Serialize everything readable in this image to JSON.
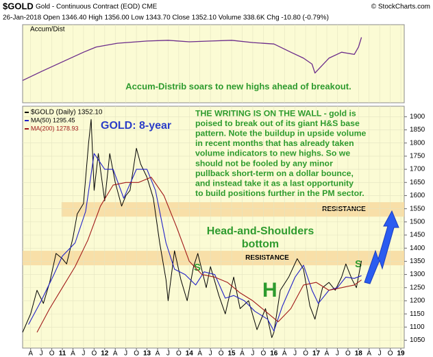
{
  "chart_data": {
    "type": "line",
    "header": {
      "symbol": "$GOLD",
      "description": "Gold - Continuous Contract (EOD) CME",
      "copyright": "© StockCharts.com",
      "quote": "26-Jan-2018  Open 1346.40  High 1356.00  Low 1343.70  Close 1352.10  Volume 338.6K  Chg -10.80 (-0.79%)"
    },
    "upper_panel": {
      "label": "Accum/Dist",
      "annotation": "Accum-Distrib soars to new highs ahead of breakout.",
      "color": "#6a2a8a",
      "ylim": [
        20,
        125
      ],
      "x": [
        2010.06,
        2010.5,
        2011.0,
        2011.5,
        2011.8,
        2012.3,
        2013.0,
        2013.5,
        2014.0,
        2014.5,
        2015.0,
        2015.5,
        2016.0,
        2016.4,
        2016.7,
        2016.9,
        2016.97,
        2017.3,
        2017.6,
        2017.9,
        2018.0,
        2018.07
      ],
      "values": [
        50,
        62,
        75,
        88,
        95,
        100,
        103,
        104,
        102,
        103,
        104,
        101,
        99,
        88,
        80,
        72,
        60,
        80,
        88,
        85,
        95,
        108
      ]
    },
    "xlim": [
      2010.06,
      2019.08
    ],
    "ylim": [
      1020,
      1940
    ],
    "grid": true,
    "xticks": [
      {
        "value": 2010.25,
        "label": "A"
      },
      {
        "value": 2010.5,
        "label": "J"
      },
      {
        "value": 2010.75,
        "label": "O"
      },
      {
        "value": 2011,
        "label": "11"
      },
      {
        "value": 2011.25,
        "label": "A"
      },
      {
        "value": 2011.5,
        "label": "J"
      },
      {
        "value": 2011.75,
        "label": "O"
      },
      {
        "value": 2012,
        "label": "12"
      },
      {
        "value": 2012.25,
        "label": "A"
      },
      {
        "value": 2012.5,
        "label": "J"
      },
      {
        "value": 2012.75,
        "label": "O"
      },
      {
        "value": 2013,
        "label": "13"
      },
      {
        "value": 2013.25,
        "label": "A"
      },
      {
        "value": 2013.5,
        "label": "J"
      },
      {
        "value": 2013.75,
        "label": "O"
      },
      {
        "value": 2014,
        "label": "14"
      },
      {
        "value": 2014.25,
        "label": "A"
      },
      {
        "value": 2014.5,
        "label": "J"
      },
      {
        "value": 2014.75,
        "label": "O"
      },
      {
        "value": 2015,
        "label": "15"
      },
      {
        "value": 2015.25,
        "label": "A"
      },
      {
        "value": 2015.5,
        "label": "J"
      },
      {
        "value": 2015.75,
        "label": "O"
      },
      {
        "value": 2016,
        "label": "16"
      },
      {
        "value": 2016.25,
        "label": "A"
      },
      {
        "value": 2016.5,
        "label": "J"
      },
      {
        "value": 2016.75,
        "label": "O"
      },
      {
        "value": 2017,
        "label": "17"
      },
      {
        "value": 2017.25,
        "label": "A"
      },
      {
        "value": 2017.5,
        "label": "J"
      },
      {
        "value": 2017.75,
        "label": "O"
      },
      {
        "value": 2018,
        "label": "18"
      },
      {
        "value": 2018.25,
        "label": "A"
      },
      {
        "value": 2018.5,
        "label": "J"
      },
      {
        "value": 2018.75,
        "label": "O"
      },
      {
        "value": 2019,
        "label": "19"
      }
    ],
    "yticks": [
      1050,
      1100,
      1150,
      1200,
      1250,
      1300,
      1350,
      1400,
      1450,
      1500,
      1550,
      1600,
      1650,
      1700,
      1750,
      1800,
      1850,
      1900
    ],
    "series": [
      {
        "name": "$GOLD (Daily) 1352.10",
        "color": "#000000",
        "x": [
          2010.06,
          2010.25,
          2010.4,
          2010.55,
          2010.7,
          2010.85,
          2011.0,
          2011.1,
          2011.25,
          2011.35,
          2011.5,
          2011.62,
          2011.68,
          2011.75,
          2011.85,
          2012.0,
          2012.12,
          2012.25,
          2012.4,
          2012.5,
          2012.6,
          2012.75,
          2012.85,
          2013.0,
          2013.15,
          2013.3,
          2013.45,
          2013.5,
          2013.65,
          2013.8,
          2013.95,
          2014.1,
          2014.2,
          2014.4,
          2014.5,
          2014.7,
          2014.85,
          2015.05,
          2015.2,
          2015.4,
          2015.6,
          2015.8,
          2015.95,
          2016.0,
          2016.15,
          2016.35,
          2016.55,
          2016.7,
          2016.85,
          2016.97,
          2017.15,
          2017.3,
          2017.45,
          2017.6,
          2017.7,
          2017.85,
          2017.95,
          2018.07
        ],
        "values": [
          1080,
          1150,
          1240,
          1190,
          1270,
          1380,
          1360,
          1340,
          1440,
          1530,
          1570,
          1800,
          1890,
          1620,
          1760,
          1580,
          1760,
          1650,
          1560,
          1600,
          1620,
          1780,
          1720,
          1670,
          1590,
          1420,
          1280,
          1200,
          1390,
          1280,
          1200,
          1330,
          1380,
          1250,
          1330,
          1220,
          1150,
          1290,
          1170,
          1200,
          1090,
          1170,
          1060,
          1080,
          1240,
          1290,
          1360,
          1320,
          1180,
          1130,
          1250,
          1270,
          1240,
          1290,
          1340,
          1280,
          1250,
          1352.1
        ]
      },
      {
        "name": "MA(50) 1295.45",
        "color": "#2020c8",
        "x": [
          2010.2,
          2010.5,
          2010.8,
          2011.0,
          2011.3,
          2011.55,
          2011.75,
          2012.0,
          2012.2,
          2012.45,
          2012.75,
          2013.0,
          2013.2,
          2013.45,
          2013.65,
          2013.9,
          2014.15,
          2014.35,
          2014.6,
          2014.85,
          2015.05,
          2015.3,
          2015.55,
          2015.85,
          2016.0,
          2016.2,
          2016.5,
          2016.7,
          2016.9,
          2017.05,
          2017.3,
          2017.5,
          2017.7,
          2017.9,
          2018.07
        ],
        "values": [
          1110,
          1200,
          1300,
          1370,
          1420,
          1540,
          1760,
          1700,
          1700,
          1590,
          1700,
          1700,
          1620,
          1420,
          1320,
          1300,
          1260,
          1310,
          1300,
          1210,
          1220,
          1200,
          1160,
          1130,
          1085,
          1180,
          1290,
          1335,
          1240,
          1190,
          1240,
          1250,
          1290,
          1285,
          1295.45
        ]
      },
      {
        "name": "MA(200) 1278.93",
        "color": "#a01818",
        "x": [
          2010.4,
          2010.7,
          2011.0,
          2011.3,
          2011.6,
          2011.9,
          2012.2,
          2012.5,
          2012.8,
          2013.1,
          2013.4,
          2013.7,
          2014.0,
          2014.3,
          2014.6,
          2014.9,
          2015.2,
          2015.5,
          2015.8,
          2016.1,
          2016.4,
          2016.7,
          2017.0,
          2017.3,
          2017.6,
          2017.9,
          2018.07
        ],
        "values": [
          1080,
          1170,
          1250,
          1330,
          1430,
          1560,
          1640,
          1650,
          1650,
          1670,
          1600,
          1480,
          1350,
          1300,
          1290,
          1270,
          1230,
          1200,
          1160,
          1120,
          1170,
          1260,
          1270,
          1240,
          1250,
          1260,
          1278.93
        ]
      }
    ],
    "bands": [
      {
        "label": "RESISTANCE",
        "range": [
          1520,
          1575
        ],
        "x_from": 2010.98
      },
      {
        "label": "RESISTANCE",
        "range": [
          1335,
          1390
        ],
        "x_from": 2010.06
      }
    ],
    "band_color": "#f7d9a0",
    "annotations": {
      "gold_title": "GOLD: 8-year",
      "commentary": [
        "THE WRITING IS ON THE WALL - gold is",
        "poised to break out of its giant H&S base",
        "pattern. Note the buildup in upside volume",
        "in recent months that has already taken",
        "volume indicators to new highs. So we",
        "should not be fooled by any minor",
        "pullback short-term on a dollar bounce,",
        "and instead take it as a last opportunity",
        "to build positions further in the PM sector."
      ],
      "pattern": [
        "Head-and-Shoulders",
        "bottom"
      ],
      "left_shoulder": "S",
      "head": "H",
      "right_shoulder": "S"
    }
  }
}
